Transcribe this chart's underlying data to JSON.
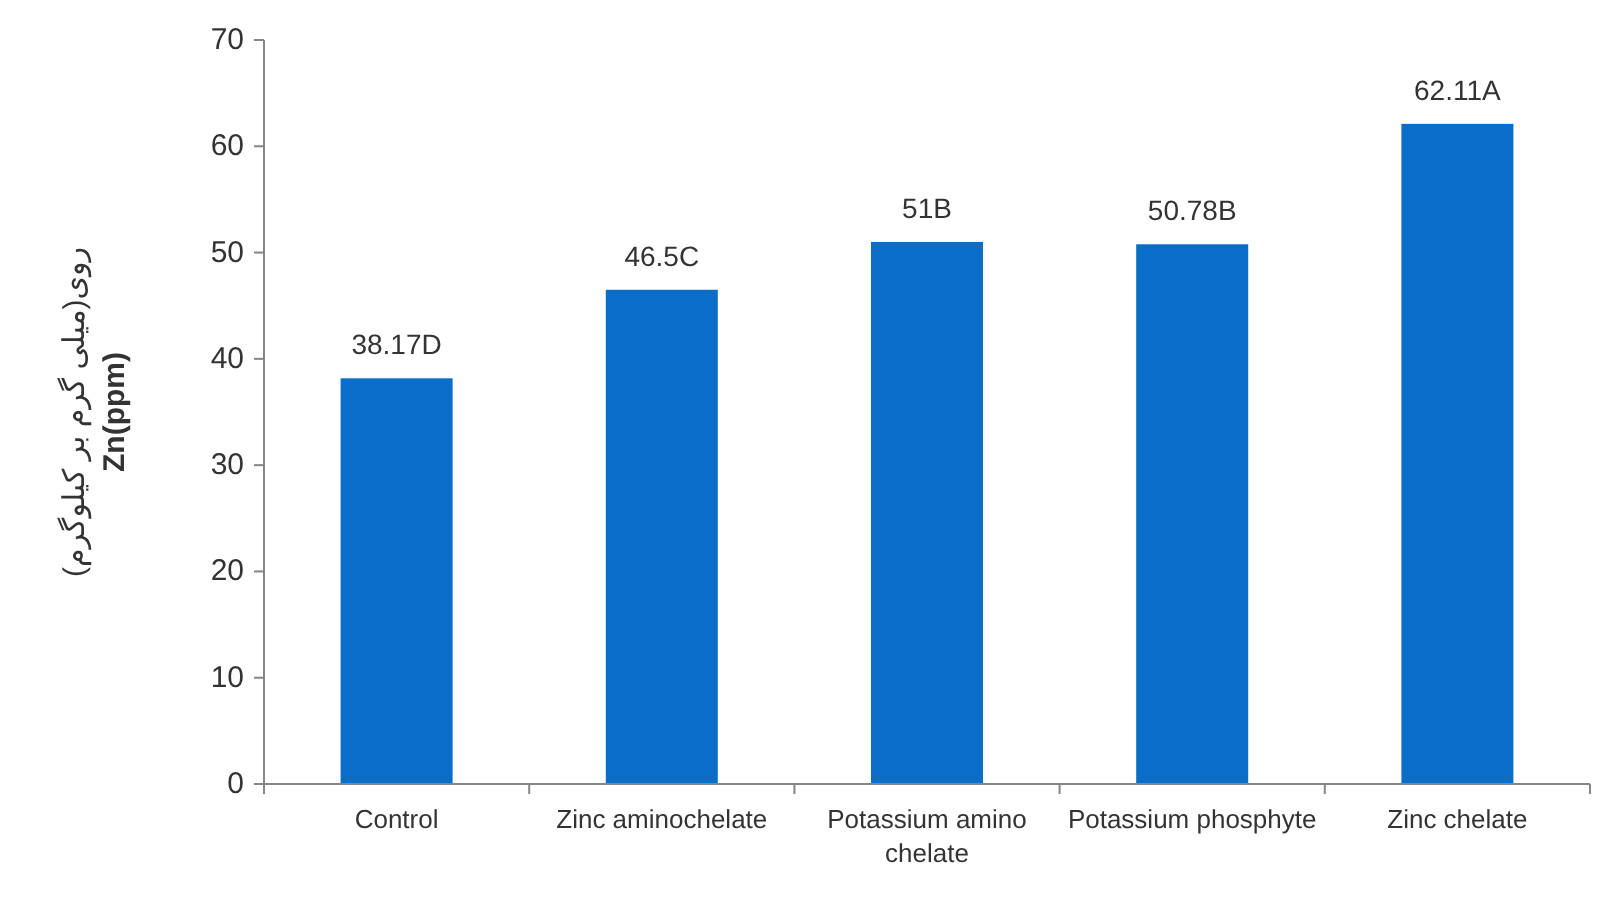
{
  "chart_data": {
    "type": "bar",
    "ylabel": "روی(میلی گرم بر کیلوگرم)\nZn(ppm)",
    "categories": [
      "Control",
      "Zinc aminochelate",
      "Potassium amino chelate",
      "Potassium phosphyte",
      "Zinc chelate"
    ],
    "values": [
      38.17,
      46.5,
      51,
      50.78,
      62.11
    ],
    "value_labels": [
      "38.17D",
      "46.5C",
      "51B",
      "50.78B",
      "62.11A"
    ],
    "color": "#0a6ec8",
    "ylim": [
      0,
      70
    ],
    "yticks": [
      0,
      10,
      20,
      30,
      40,
      50,
      60,
      70
    ]
  }
}
